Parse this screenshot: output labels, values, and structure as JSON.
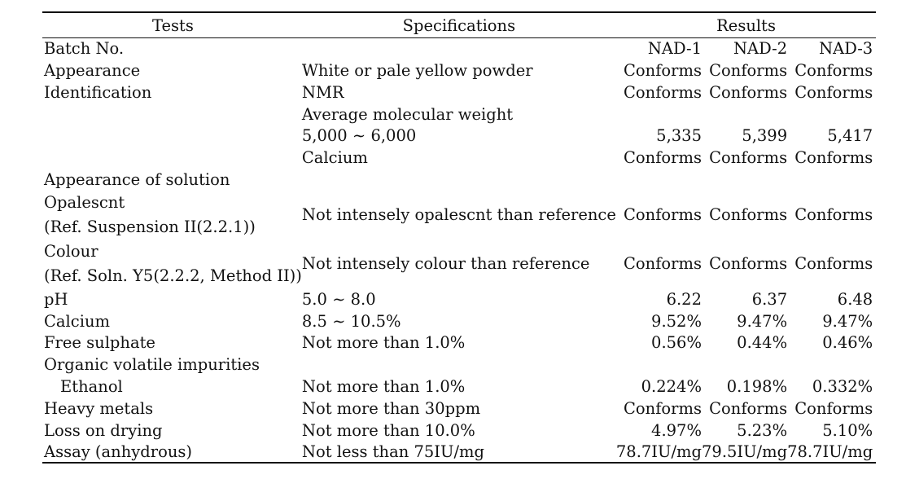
{
  "headers": {
    "tests": "Tests",
    "specifications": "Specifications",
    "results": "Results"
  },
  "rows": [
    {
      "test": "Batch No.",
      "spec": "",
      "r1": "NAD-1",
      "r2": "NAD-2",
      "r3": "NAD-3"
    },
    {
      "test": "Appearance",
      "spec": "White or pale yellow powder",
      "r1": "Conforms",
      "r2": "Conforms",
      "r3": "Conforms"
    },
    {
      "test": "Identification",
      "spec": "NMR",
      "r1": "Conforms",
      "r2": "Conforms",
      "r3": "Conforms"
    },
    {
      "test": "",
      "spec": "Average molecular weight",
      "r1": "",
      "r2": "",
      "r3": ""
    },
    {
      "test": "",
      "spec": "5,000 ∼ 6,000",
      "r1": "5,335",
      "r2": "5,399",
      "r3": "5,417"
    },
    {
      "test": "",
      "spec": "Calcium",
      "r1": "Conforms",
      "r2": "Conforms",
      "r3": "Conforms"
    },
    {
      "test": "Appearance of solution",
      "spec": "",
      "r1": "",
      "r2": "",
      "r3": ""
    },
    {
      "test": "Opalescnt",
      "test2": "(Ref. Suspension II(2.2.1))",
      "spec": "Not intensely opalescnt than reference",
      "r1": "Conforms",
      "r2": "Conforms",
      "r3": "Conforms"
    },
    {
      "test": "Colour",
      "test2": "(Ref. Soln. Y5(2.2.2, Method II))",
      "spec": "Not intensely colour than reference",
      "r1": "Conforms",
      "r2": "Conforms",
      "r3": "Conforms"
    },
    {
      "test": "pH",
      "spec": "5.0 ∼ 8.0",
      "r1": "6.22",
      "r2": "6.37",
      "r3": "6.48"
    },
    {
      "test": "Calcium",
      "spec": "8.5 ∼ 10.5%",
      "r1": "9.52%",
      "r2": "9.47%",
      "r3": "9.47%"
    },
    {
      "test": "Free sulphate",
      "spec": "Not more than 1.0%",
      "r1": "0.56%",
      "r2": "0.44%",
      "r3": "0.46%"
    },
    {
      "test": "Organic volatile impurities",
      "spec": "",
      "r1": "",
      "r2": "",
      "r3": ""
    },
    {
      "test": "Ethanol",
      "spec": "Not more than 1.0%",
      "r1": "0.224%",
      "r2": "0.198%",
      "r3": "0.332%"
    },
    {
      "test": "Heavy metals",
      "spec": "Not more than 30ppm",
      "r1": "Conforms",
      "r2": "Conforms",
      "r3": "Conforms"
    },
    {
      "test": "Loss on drying",
      "spec": "Not more than 10.0%",
      "r1": "4.97%",
      "r2": "5.23%",
      "r3": "5.10%"
    },
    {
      "test": "Assay (anhydrous)",
      "spec": "Not less than 75IU/mg",
      "r1": "78.7IU/mg",
      "r2": "79.5IU/mg",
      "r3": "78.7IU/mg"
    }
  ]
}
